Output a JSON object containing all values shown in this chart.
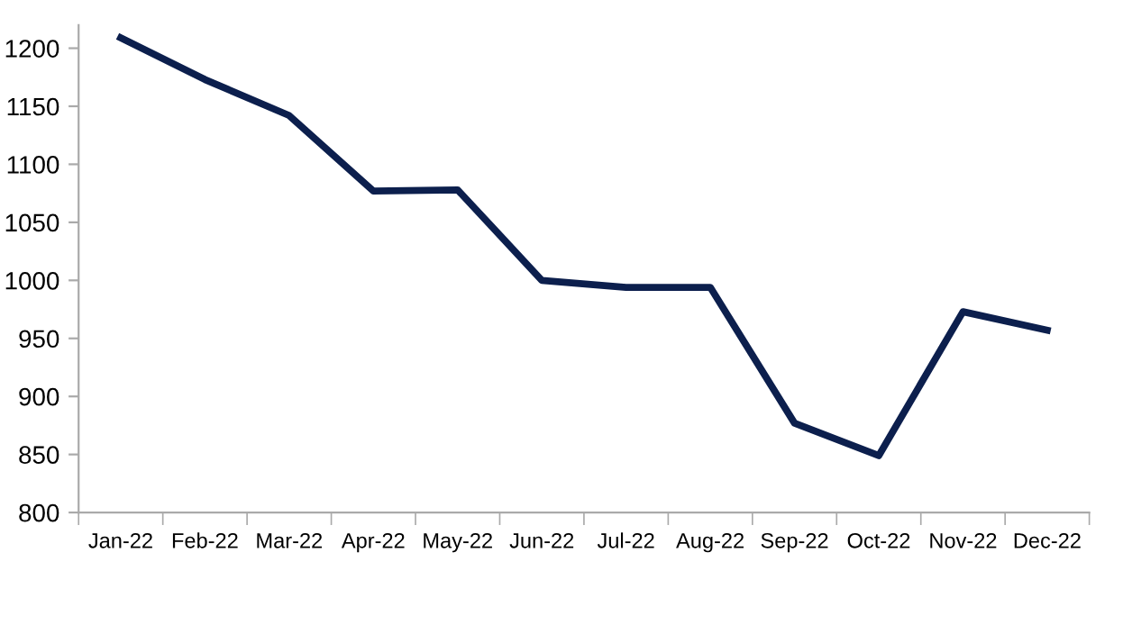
{
  "chart_data": {
    "type": "line",
    "categories": [
      "Jan-22",
      "Feb-22",
      "Mar-22",
      "Apr-22",
      "May-22",
      "Jun-22",
      "Jul-22",
      "Aug-22",
      "Sep-22",
      "Oct-22",
      "Nov-22",
      "Dec-22"
    ],
    "series": [
      {
        "color": "#0c1f4d",
        "values": [
          1209,
          1173,
          1142,
          1077,
          1078,
          1000,
          994,
          994,
          877,
          849,
          973,
          957
        ]
      }
    ],
    "ylim": [
      800,
      1220
    ],
    "yticks": [
      800,
      850,
      900,
      950,
      1000,
      1050,
      1100,
      1150,
      1200
    ],
    "grid": false,
    "marker": "none",
    "line_style": "solid"
  }
}
